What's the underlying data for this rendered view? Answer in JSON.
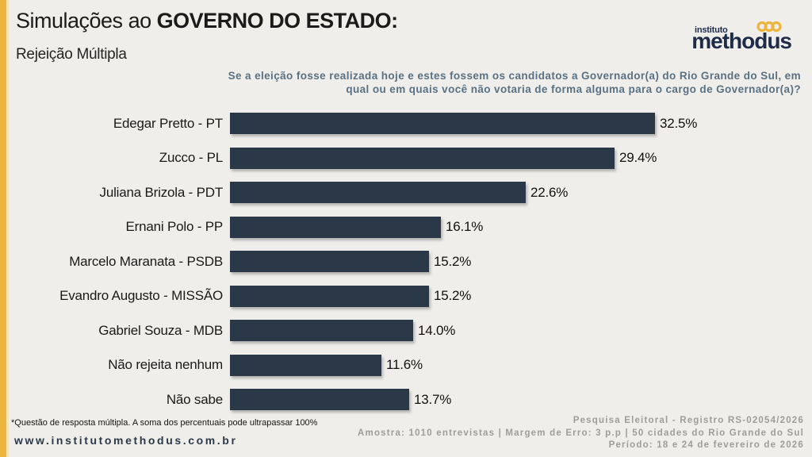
{
  "header": {
    "title_regular": "Simulações ao ",
    "title_bold": "GOVERNO DO ESTADO:",
    "subtitle": "Rejeição Múltipla",
    "question_line1": "Se a eleição fosse realizada hoje e estes fossem os candidatos a Governador(a) do Rio Grande do Sul, em",
    "question_line2": "qual ou em quais você não votaria de forma alguma para o cargo de Governador(a)?"
  },
  "logo": {
    "top": "instituto",
    "name": "methodus",
    "rings_icon": "three-interlocked-rings"
  },
  "chart_data": {
    "type": "bar",
    "orientation": "horizontal",
    "categories": [
      "Edegar Pretto - PT",
      "Zucco - PL",
      "Juliana Brizola - PDT",
      "Ernani Polo - PP",
      "Marcelo Maranata - PSDB",
      "Evandro Augusto - MISSÃO",
      "Gabriel Souza - MDB",
      "Não rejeita nenhum",
      "Não sabe"
    ],
    "values": [
      32.5,
      29.4,
      22.6,
      16.1,
      15.2,
      15.2,
      14.0,
      11.6,
      13.7
    ],
    "value_labels": [
      "32.5%",
      "29.4%",
      "22.6%",
      "16.1%",
      "15.2%",
      "15.2%",
      "14.0%",
      "11.6%",
      "13.7%"
    ],
    "title": "Simulações ao GOVERNO DO ESTADO: Rejeição Múltipla",
    "xlabel": "",
    "ylabel": "",
    "xlim": [
      0,
      35
    ],
    "grid": false,
    "legend": false,
    "bar_color": "#2b3847"
  },
  "footer": {
    "note": "*Questão de resposta múltipla. A soma dos percentuais pode ultrapassar 100%",
    "website": "www.institutomethodus.com.br",
    "registry": "Pesquisa Eleitoral - Registro RS-02054/2026",
    "sample": "Amostra: 1010 entrevistas | Margem de Erro: 3 p.p | 50 cidades do Rio Grande do Sul",
    "period": "Período: 18 e 24 de fevereiro de 2026"
  },
  "colors": {
    "background": "#efeeea",
    "accent_gold": "#ecb53e",
    "bar": "#2b3847",
    "logo_navy": "#1e2c49",
    "question_text": "#5a7183",
    "footer_gray": "#9d9d9d"
  }
}
